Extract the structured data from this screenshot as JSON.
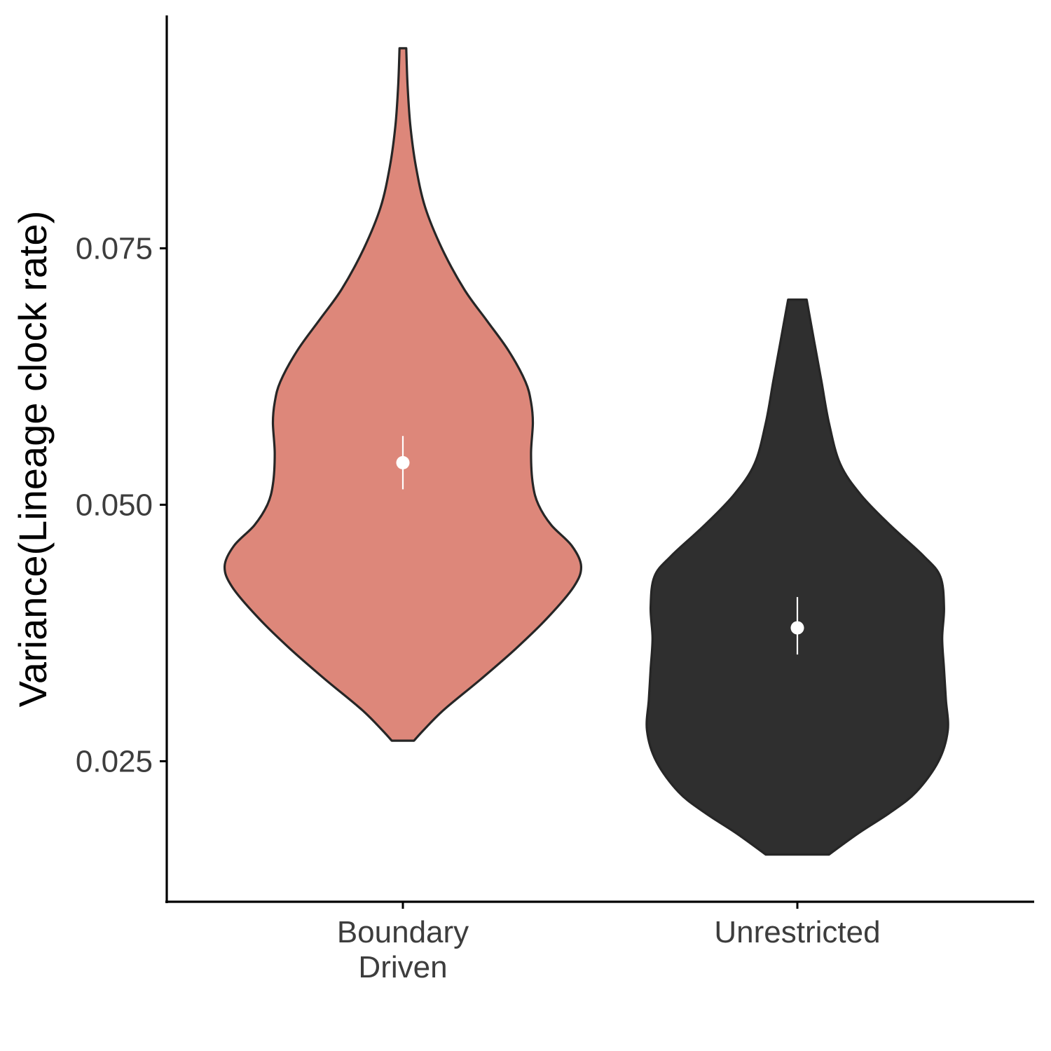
{
  "chart_data": {
    "type": "violin",
    "ylabel": "Variance(Lineage clock rate)",
    "xlabel": "",
    "ylim": [
      0.0113,
      0.0977
    ],
    "yticks": [
      {
        "value": 0.025,
        "label": "0.025"
      },
      {
        "value": 0.05,
        "label": "0.050"
      },
      {
        "value": 0.075,
        "label": "0.075"
      }
    ],
    "categories": [
      {
        "label_lines": [
          "Boundary",
          "Driven"
        ],
        "fill": "#dd877a",
        "stroke": "#262626"
      },
      {
        "label_lines": [
          "Unrestricted"
        ],
        "fill": "#2f2f2f",
        "stroke": "#262626"
      }
    ],
    "grid": false,
    "legend": "none",
    "series": [
      {
        "category_index": 0,
        "min": 0.027,
        "max": 0.0945,
        "mean": 0.0541,
        "ci": [
          0.0515,
          0.0567
        ],
        "density": [
          [
            0.027,
            0.06
          ],
          [
            0.028,
            0.11
          ],
          [
            0.03,
            0.22
          ],
          [
            0.033,
            0.42
          ],
          [
            0.036,
            0.61
          ],
          [
            0.039,
            0.78
          ],
          [
            0.042,
            0.92
          ],
          [
            0.044,
            0.96
          ],
          [
            0.046,
            0.91
          ],
          [
            0.048,
            0.8
          ],
          [
            0.05,
            0.73
          ],
          [
            0.052,
            0.7
          ],
          [
            0.055,
            0.69
          ],
          [
            0.058,
            0.7
          ],
          [
            0.06,
            0.69
          ],
          [
            0.062,
            0.66
          ],
          [
            0.065,
            0.57
          ],
          [
            0.068,
            0.45
          ],
          [
            0.071,
            0.33
          ],
          [
            0.075,
            0.21
          ],
          [
            0.079,
            0.12
          ],
          [
            0.083,
            0.07
          ],
          [
            0.087,
            0.04
          ],
          [
            0.091,
            0.025
          ],
          [
            0.0945,
            0.018
          ]
        ]
      },
      {
        "category_index": 1,
        "min": 0.0159,
        "max": 0.07,
        "mean": 0.038,
        "ci": [
          0.0354,
          0.041
        ],
        "density": [
          [
            0.0159,
            0.17
          ],
          [
            0.018,
            0.33
          ],
          [
            0.02,
            0.5
          ],
          [
            0.022,
            0.64
          ],
          [
            0.025,
            0.76
          ],
          [
            0.028,
            0.81
          ],
          [
            0.031,
            0.8
          ],
          [
            0.034,
            0.79
          ],
          [
            0.037,
            0.78
          ],
          [
            0.04,
            0.79
          ],
          [
            0.043,
            0.77
          ],
          [
            0.045,
            0.68
          ],
          [
            0.048,
            0.5
          ],
          [
            0.051,
            0.34
          ],
          [
            0.054,
            0.23
          ],
          [
            0.058,
            0.17
          ],
          [
            0.062,
            0.13
          ],
          [
            0.066,
            0.09
          ],
          [
            0.07,
            0.05
          ]
        ]
      }
    ],
    "colors": {
      "point": "#ffffff",
      "axis": "#000000",
      "outline": "#262626"
    }
  }
}
